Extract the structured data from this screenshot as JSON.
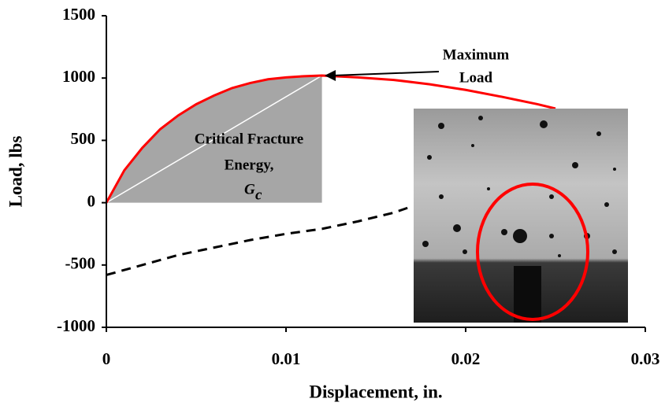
{
  "chart_data": {
    "type": "line",
    "xlabel": "Displacement, in.",
    "ylabel": "Load, lbs",
    "xlim": [
      0,
      0.03
    ],
    "xticks": [
      0,
      0.01,
      0.02,
      0.03
    ],
    "ylim": [
      -1000,
      1500
    ],
    "yticks": [
      -1000,
      -500,
      0,
      500,
      1000,
      1500
    ],
    "grid": false,
    "series": [
      {
        "color": "#ff0000",
        "dash": false,
        "x": [
          0,
          0.001,
          0.002,
          0.003,
          0.004,
          0.005,
          0.006,
          0.007,
          0.008,
          0.009,
          0.01,
          0.011,
          0.012,
          0.014,
          0.016,
          0.018,
          0.02,
          0.022,
          0.024,
          0.025
        ],
        "values": [
          0,
          260,
          440,
          590,
          700,
          790,
          860,
          920,
          960,
          990,
          1005,
          1015,
          1020,
          1005,
          985,
          950,
          905,
          850,
          790,
          755
        ]
      },
      {
        "color": "#000000",
        "dash": true,
        "x": [
          0,
          0.002,
          0.004,
          0.006,
          0.008,
          0.01,
          0.012,
          0.014,
          0.016,
          0.017
        ],
        "values": [
          -580,
          -500,
          -420,
          -360,
          -300,
          -250,
          -210,
          -150,
          -80,
          -30
        ]
      }
    ],
    "annotations": {
      "max_load": [
        "Maximum",
        "Load"
      ],
      "energy": [
        "Critical Fracture",
        "Energy,"
      ],
      "energy_symbol": "G",
      "energy_subscript": "c"
    }
  }
}
